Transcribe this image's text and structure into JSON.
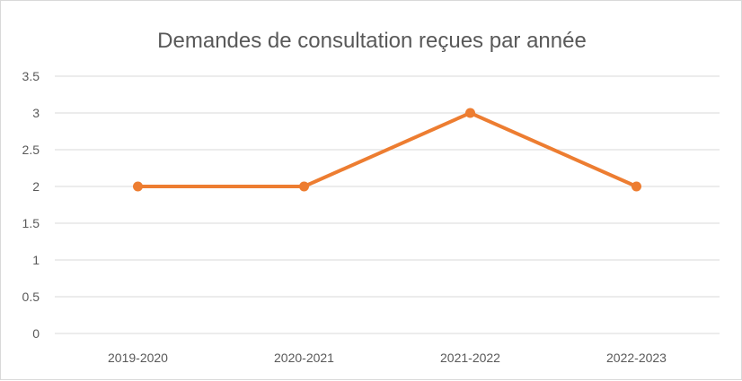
{
  "chart_data": {
    "type": "line",
    "title": "Demandes de consultation reçues par année",
    "xlabel": "",
    "ylabel": "",
    "categories": [
      "2019-2020",
      "2020-2021",
      "2021-2022",
      "2022-2023"
    ],
    "series": [
      {
        "values": [
          2,
          2,
          3,
          2
        ],
        "color": "#ED7D31"
      }
    ],
    "ylim": [
      0,
      3.5
    ],
    "yticks": [
      "0",
      "0.5",
      "1",
      "1.5",
      "2",
      "2.5",
      "3",
      "3.5"
    ],
    "grid": true,
    "legend": "none",
    "gridline_color": "#d9d9d9"
  }
}
